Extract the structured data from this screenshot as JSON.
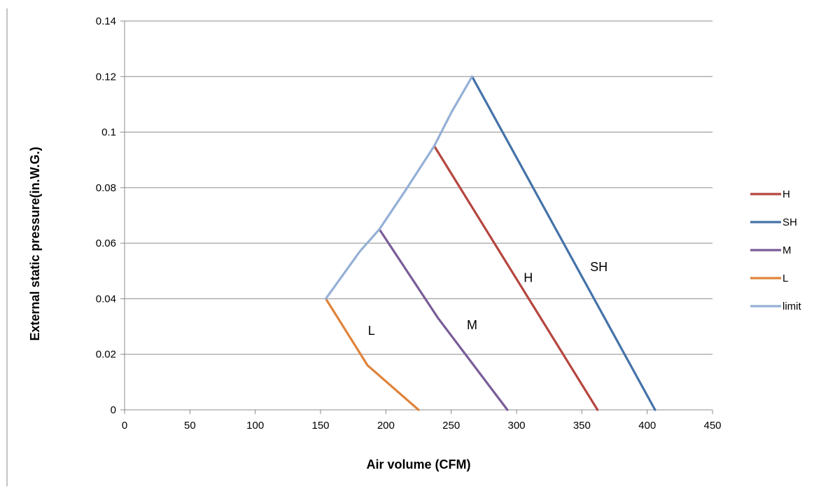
{
  "chart_data": {
    "type": "line",
    "title": "",
    "xlabel": "Air volume (CFM)",
    "ylabel": "External static pressure(in.W.G.)",
    "xlim": [
      0,
      450
    ],
    "ylim": [
      0,
      0.14
    ],
    "x_ticks": [
      0,
      50,
      100,
      150,
      200,
      250,
      300,
      350,
      400,
      450
    ],
    "y_ticks": [
      0,
      0.02,
      0.04,
      0.06,
      0.08,
      0.1,
      0.12,
      0.14
    ],
    "x_tick_labels": [
      "0",
      "50",
      "100",
      "150",
      "200",
      "250",
      "300",
      "350",
      "400",
      "450"
    ],
    "y_tick_labels": [
      "0",
      "0.02",
      "0.04",
      "0.06",
      "0.08",
      "0.1",
      "0.12",
      "0.14"
    ],
    "grid": "horizontal",
    "legend_position": "right",
    "series": [
      {
        "name": "H",
        "color": "#B5463F",
        "points": [
          [
            237,
            0.095
          ],
          [
            362,
            0.0
          ]
        ]
      },
      {
        "name": "SH",
        "color": "#4472A8",
        "points": [
          [
            266,
            0.12
          ],
          [
            406,
            0.0
          ]
        ]
      },
      {
        "name": "M",
        "color": "#7A5C98",
        "points": [
          [
            195,
            0.065
          ],
          [
            240,
            0.033
          ],
          [
            293,
            0.0
          ]
        ]
      },
      {
        "name": "L",
        "color": "#E0833A",
        "points": [
          [
            154,
            0.04
          ],
          [
            186,
            0.016
          ],
          [
            225,
            0.0
          ]
        ]
      },
      {
        "name": "limit",
        "color": "#95B0D6",
        "points": [
          [
            154,
            0.04
          ],
          [
            180,
            0.057
          ],
          [
            195,
            0.065
          ],
          [
            215,
            0.079
          ],
          [
            237,
            0.095
          ],
          [
            250,
            0.107
          ],
          [
            266,
            0.12
          ]
        ]
      }
    ],
    "annotations": [
      {
        "text": "L",
        "x": 189,
        "y": 0.027
      },
      {
        "text": "M",
        "x": 266,
        "y": 0.029
      },
      {
        "text": "H",
        "x": 309,
        "y": 0.046
      },
      {
        "text": "SH",
        "x": 363,
        "y": 0.05
      }
    ]
  }
}
